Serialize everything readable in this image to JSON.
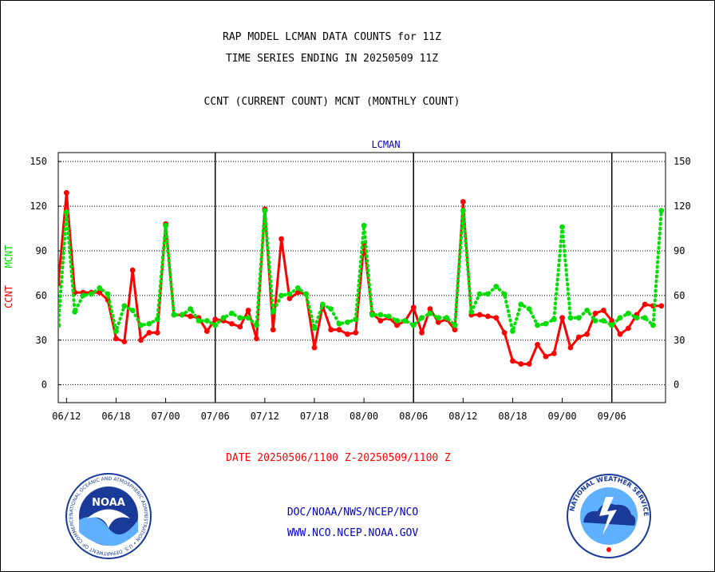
{
  "header": {
    "title_line1": "RAP MODEL LCMAN DATA COUNTS for 11Z",
    "title_line2": "TIME SERIES ENDING IN 20250509 11Z",
    "title_line3": "CCNT (CURRENT COUNT) MCNT (MONTHLY COUNT)"
  },
  "footer": {
    "date_range": "DATE 20250506/1100 Z-20250509/1100 Z",
    "credit_line1": "DOC/NOAA/NWS/NCEP/NCO",
    "credit_line2": "WWW.NCO.NCEP.NOAA.GOV",
    "logo_left_text": "NATIONAL OCEANIC AND ATMOSPHERIC ADMINISTRATION • U.S. DEPARTMENT OF COMMERCE •",
    "logo_left_word": "NOAA",
    "logo_right_text": "NATIONAL WEATHER SERVICE"
  },
  "colors": {
    "ccnt": "#ff0000",
    "mcnt": "#00dd00",
    "text_blue": "#0000c8"
  },
  "chart_data": {
    "type": "line",
    "title": "LCMAN",
    "ylabel_parts": [
      "CCNT",
      "MCNT"
    ],
    "ylim": [
      -12,
      156
    ],
    "yticks": [
      0,
      30,
      60,
      90,
      120,
      150
    ],
    "xlim": [
      -1,
      72.5
    ],
    "xticks": [
      {
        "x": 0,
        "label": "06/12"
      },
      {
        "x": 6,
        "label": "06/18"
      },
      {
        "x": 12,
        "label": "07/00"
      },
      {
        "x": 18,
        "label": "07/06"
      },
      {
        "x": 24,
        "label": "07/12"
      },
      {
        "x": 30,
        "label": "07/18"
      },
      {
        "x": 36,
        "label": "08/00"
      },
      {
        "x": 42,
        "label": "08/06"
      },
      {
        "x": 48,
        "label": "08/12"
      },
      {
        "x": 54,
        "label": "08/18"
      },
      {
        "x": 60,
        "label": "09/00"
      },
      {
        "x": 66,
        "label": "09/06"
      }
    ],
    "xunit": "hours after 06/12",
    "day_boundaries": [
      18,
      42,
      66
    ],
    "grid": true,
    "series": [
      {
        "name": "CCNT",
        "color": "#ff0000",
        "style": "solid",
        "x": [
          -1,
          0,
          1,
          2,
          3,
          4,
          5,
          6,
          7,
          8,
          9,
          10,
          11,
          12,
          13,
          14,
          15,
          16,
          17,
          18,
          19,
          20,
          21,
          22,
          23,
          24,
          25,
          26,
          27,
          28,
          29,
          30,
          31,
          32,
          33,
          34,
          35,
          36,
          37,
          38,
          39,
          40,
          41,
          42,
          43,
          44,
          45,
          46,
          47,
          48,
          49,
          50,
          51,
          52,
          53,
          54,
          55,
          56,
          57,
          58,
          59,
          60,
          61,
          62,
          63,
          64,
          65,
          66,
          67,
          68,
          69,
          70,
          71,
          72
        ],
        "values": [
          68,
          129,
          62,
          62,
          62,
          62,
          57,
          31,
          29,
          77,
          30,
          35,
          35,
          108,
          47,
          47,
          46,
          45,
          36,
          44,
          43,
          41,
          39,
          50,
          31,
          118,
          37,
          98,
          58,
          62,
          61,
          25,
          53,
          37,
          37,
          34,
          35,
          95,
          48,
          43,
          45,
          40,
          43,
          52,
          35,
          51,
          42,
          44,
          37,
          123,
          47,
          47,
          46,
          45,
          35,
          16,
          14,
          14,
          27,
          19,
          21,
          45,
          25,
          32,
          34,
          48,
          50,
          43,
          34,
          38,
          47,
          54,
          53,
          53
        ]
      },
      {
        "name": "MCNT",
        "color": "#00dd00",
        "style": "dotted",
        "x": [
          -1,
          0,
          1,
          2,
          3,
          4,
          5,
          6,
          7,
          8,
          9,
          10,
          11,
          12,
          13,
          14,
          15,
          16,
          17,
          18,
          19,
          20,
          21,
          22,
          23,
          24,
          25,
          26,
          27,
          28,
          29,
          30,
          31,
          32,
          33,
          34,
          35,
          36,
          37,
          38,
          39,
          40,
          41,
          42,
          43,
          44,
          45,
          46,
          47,
          48,
          49,
          50,
          51,
          52,
          53,
          54,
          55,
          56,
          57,
          58,
          59,
          60,
          61,
          62,
          63,
          64,
          65,
          66,
          67,
          68,
          69,
          70,
          71,
          72
        ],
        "values": [
          40,
          116,
          49,
          60,
          61,
          65,
          61,
          36,
          53,
          50,
          40,
          41,
          44,
          107,
          47,
          47,
          51,
          43,
          43,
          40,
          45,
          48,
          45,
          45,
          40,
          117,
          49,
          60,
          61,
          65,
          61,
          38,
          54,
          51,
          41,
          42,
          44,
          107,
          47,
          47,
          46,
          43,
          43,
          40,
          45,
          48,
          45,
          45,
          40,
          117,
          49,
          61,
          61,
          66,
          61,
          36,
          54,
          51,
          40,
          41,
          44,
          106,
          45,
          45,
          50,
          43,
          43,
          40,
          45,
          48,
          45,
          45,
          40,
          117
        ]
      }
    ]
  }
}
